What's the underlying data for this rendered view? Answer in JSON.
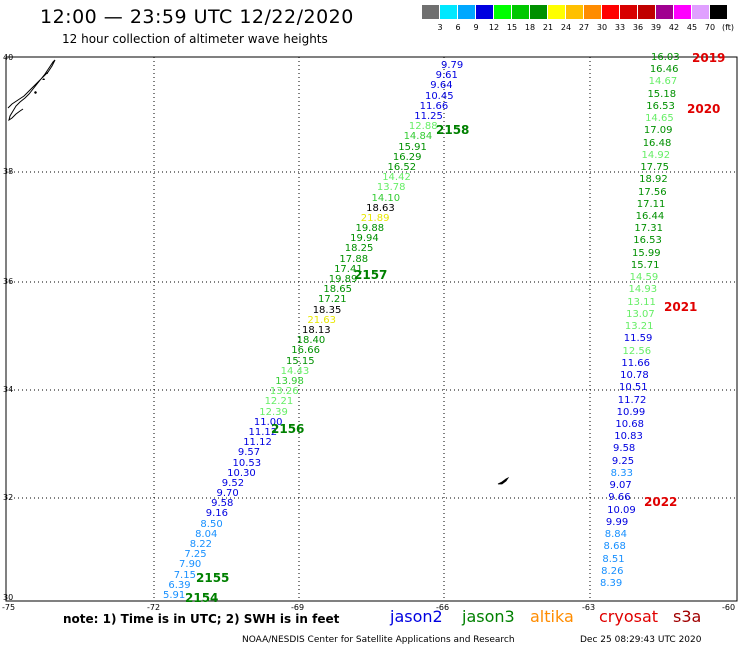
{
  "header": {
    "title": "12:00 — 23:59 UTC 12/22/2020",
    "subtitle": "12 hour collection of altimeter wave heights"
  },
  "colorbar": {
    "colors": [
      "#707070",
      "#00e8ff",
      "#00a8ff",
      "#0000e0",
      "#00ff00",
      "#00c800",
      "#009000",
      "#ffff00",
      "#ffc000",
      "#ff8c00",
      "#ff0000",
      "#d80000",
      "#c00000",
      "#a00090",
      "#ff00ff",
      "#e0a0ff",
      "#000000"
    ],
    "labels": [
      "3",
      "6",
      "9",
      "12",
      "15",
      "18",
      "21",
      "24",
      "27",
      "30",
      "33",
      "36",
      "39",
      "42",
      "45",
      "70",
      "(ft)"
    ]
  },
  "axes": {
    "lat_labels": [
      "40",
      "38",
      "36",
      "34",
      "32",
      "30"
    ],
    "lon_labels": [
      "-75",
      "-72",
      "-69",
      "-66",
      "-63",
      "-60"
    ]
  },
  "track_west": {
    "values": [
      "9.79",
      "9.61",
      "9.64",
      "10.45",
      "11.66",
      "11.25",
      "12.88",
      "14.84",
      "15.91",
      "16.29",
      "16.52",
      "14.42",
      "13.78",
      "14.10",
      "18.63",
      "21.89",
      "19.88",
      "19.94",
      "18.25",
      "17.88",
      "17.41",
      "19.89",
      "18.65",
      "17.21",
      "18.35",
      "21.63",
      "18.13",
      "18.40",
      "16.66",
      "15.15",
      "14.43",
      "13.98",
      "13.26",
      "12.21",
      "12.39",
      "11.00",
      "11.12",
      "11.12",
      "9.57",
      "10.53",
      "10.30",
      "9.52",
      "9.70",
      "9.58",
      "9.16",
      "8.50",
      "8.04",
      "8.22",
      "7.25",
      "7.90",
      "7.15",
      "6.39",
      "5.91"
    ],
    "colors": [
      "#0000e0",
      "#0000e0",
      "#0000e0",
      "#0000e0",
      "#0000e0",
      "#0000e0",
      "#66ee66",
      "#33cc33",
      "#009000",
      "#009000",
      "#009000",
      "#66ee66",
      "#66ee66",
      "#33cc33",
      "#000000",
      "#e8e800",
      "#009000",
      "#009000",
      "#009000",
      "#009000",
      "#009000",
      "#009000",
      "#009000",
      "#009000",
      "#000000",
      "#e8e800",
      "#000000",
      "#009000",
      "#009000",
      "#009000",
      "#66ee66",
      "#33cc33",
      "#66ee66",
      "#66ee66",
      "#66ee66",
      "#0000e0",
      "#0000e0",
      "#0000e0",
      "#0000e0",
      "#0000e0",
      "#0000e0",
      "#0000e0",
      "#0000e0",
      "#0000e0",
      "#0000e0",
      "#1890ff",
      "#1890ff",
      "#1890ff",
      "#1890ff",
      "#1890ff",
      "#1890ff",
      "#1890ff",
      "#1890ff"
    ]
  },
  "track_east": {
    "values": [
      "16.03",
      "16.46",
      "14.67",
      "15.18",
      "16.53",
      "14.65",
      "17.09",
      "16.48",
      "14.92",
      "17.75",
      "18.92",
      "17.56",
      "17.11",
      "16.44",
      "17.31",
      "16.53",
      "15.99",
      "15.71",
      "14.59",
      "14.93",
      "13.11",
      "13.07",
      "13.21",
      "11.59",
      "12.56",
      "11.66",
      "10.78",
      "10.51",
      "11.72",
      "10.99",
      "10.68",
      "10.83",
      "9.58",
      "9.25",
      "8.33",
      "9.07",
      "9.66",
      "10.09",
      "9.99",
      "8.84",
      "8.68",
      "8.51",
      "8.26",
      "8.39"
    ],
    "colors": [
      "#009000",
      "#009000",
      "#66ee66",
      "#009000",
      "#009000",
      "#66ee66",
      "#009000",
      "#009000",
      "#66ee66",
      "#009000",
      "#009000",
      "#009000",
      "#009000",
      "#009000",
      "#009000",
      "#009000",
      "#009000",
      "#009000",
      "#66ee66",
      "#66ee66",
      "#66ee66",
      "#66ee66",
      "#66ee66",
      "#0000e0",
      "#66ee66",
      "#0000e0",
      "#0000e0",
      "#0000e0",
      "#0000e0",
      "#0000e0",
      "#0000e0",
      "#0000e0",
      "#0000e0",
      "#0000e0",
      "#1890ff",
      "#0000e0",
      "#0000e0",
      "#0000e0",
      "#0000e0",
      "#1890ff",
      "#1890ff",
      "#1890ff",
      "#1890ff",
      "#1890ff"
    ]
  },
  "pass_labels_green": [
    "2158",
    "2157",
    "2156",
    "2155",
    "2154"
  ],
  "pass_labels_red": [
    "2019",
    "2020",
    "2021",
    "2022"
  ],
  "note": "note:  1) Time is in UTC;  2) SWH is in feet",
  "satellites": [
    {
      "name": "jason2",
      "color": "#0000e0"
    },
    {
      "name": "jason3",
      "color": "#008000"
    },
    {
      "name": "altika",
      "color": "#ff8c00"
    },
    {
      "name": "cryosat",
      "color": "#e00000"
    },
    {
      "name": "s3a",
      "color": "#a00000"
    }
  ],
  "footer": {
    "center": "NOAA/NESDIS Center for Satellite Applications and Research",
    "timestamp": "Dec 25 08:29:43 UTC 2020"
  }
}
